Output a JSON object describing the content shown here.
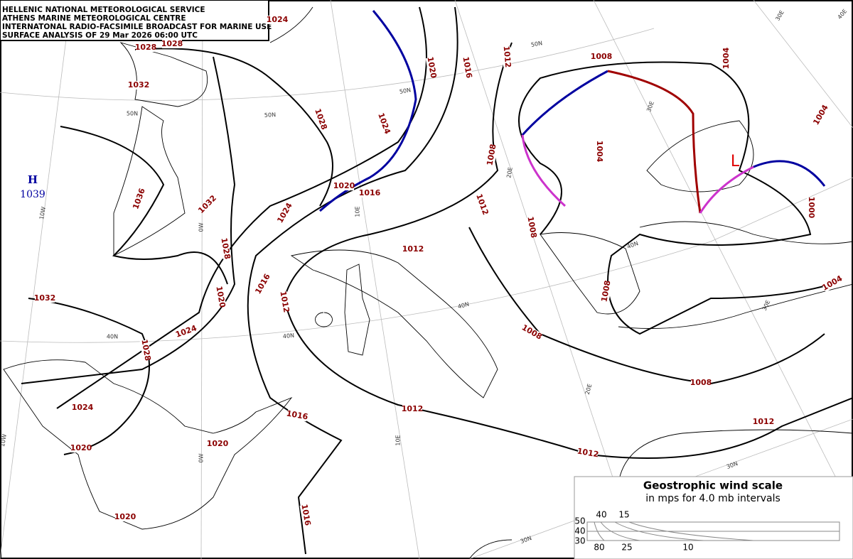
{
  "header": {
    "lines": [
      "HELLENIC NATIONAL METEOROLOGICAL SERVICE",
      "ATHENS MARINE METEOROLOGICAL CENTRE",
      "INTERNATONAL RADIO-FACSIMILE BROADCAST FOR MARINE USE",
      "SURFACE ANALYSIS OF 29 Mar 2026 06:00 UTC"
    ]
  },
  "centers": [
    {
      "symbol": "H",
      "pressure": "1039"
    },
    {
      "symbol": "L"
    }
  ],
  "isobar_labels": [
    "1024",
    "1028",
    "1028",
    "1032",
    "1020",
    "1016",
    "1012",
    "1008",
    "1004",
    "1028",
    "1024",
    "1004",
    "1004",
    "1008",
    "1036",
    "1032",
    "1024",
    "1020",
    "1016",
    "1012",
    "1008",
    "1012",
    "1000",
    "1028",
    "1016",
    "1020",
    "1012",
    "1008",
    "1004",
    "1032",
    "1024",
    "1008",
    "1028",
    "1008",
    "1024",
    "1012",
    "1016",
    "1012",
    "1020",
    "1020",
    "1012",
    "1020",
    "1016"
  ],
  "graticule_labels": [
    "50N",
    "50N",
    "50N",
    "50N",
    "40N",
    "40N",
    "40N",
    "40N",
    "30N",
    "30N",
    "10W",
    "0W",
    "10E",
    "20E",
    "30E",
    "30E",
    "40E",
    "10W",
    "0W",
    "10E",
    "20E",
    "30E"
  ],
  "wind_scale": {
    "title": "Geostrophic wind scale",
    "subtitle": "in mps for 4.0 mb intervals",
    "latitudes": [
      "50",
      "40",
      "30"
    ],
    "top_speeds": [
      "40",
      "15"
    ],
    "bottom_speeds": [
      "80",
      "25",
      "10"
    ]
  }
}
